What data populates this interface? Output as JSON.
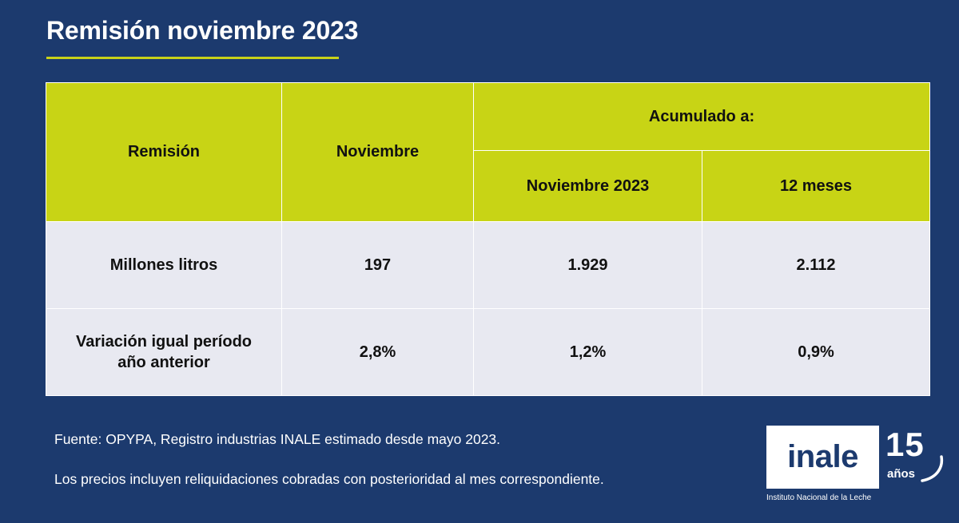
{
  "title": "Remisión noviembre 2023",
  "table": {
    "header": {
      "remision": "Remisión",
      "noviembre": "Noviembre",
      "acumulado": "Acumulado a:",
      "noviembre_2023": "Noviembre 2023",
      "doce_meses": "12 meses"
    },
    "rows": [
      {
        "label_line1": "Millones litros",
        "noviembre": "197",
        "noviembre_2023": "1.929",
        "doce_meses": "2.112"
      },
      {
        "label_line1": "Variación igual período",
        "label_line2": "año anterior",
        "noviembre": "2,8%",
        "noviembre_2023": "1,2%",
        "doce_meses": "0,9%"
      }
    ]
  },
  "footnotes": {
    "source": "Fuente: OPYPA, Registro industrias INALE estimado desde mayo 2023.",
    "prices": "Los precios incluyen reliquidaciones cobradas con posterioridad al mes correspondiente."
  },
  "logo": {
    "word": "inale",
    "years_number": "15",
    "years_word": "años",
    "subtitle": "Instituto Nacional de la Leche"
  },
  "colors": {
    "background": "#1c3a6e",
    "accent": "#c8d415",
    "table_body": "#e8e9f1"
  }
}
